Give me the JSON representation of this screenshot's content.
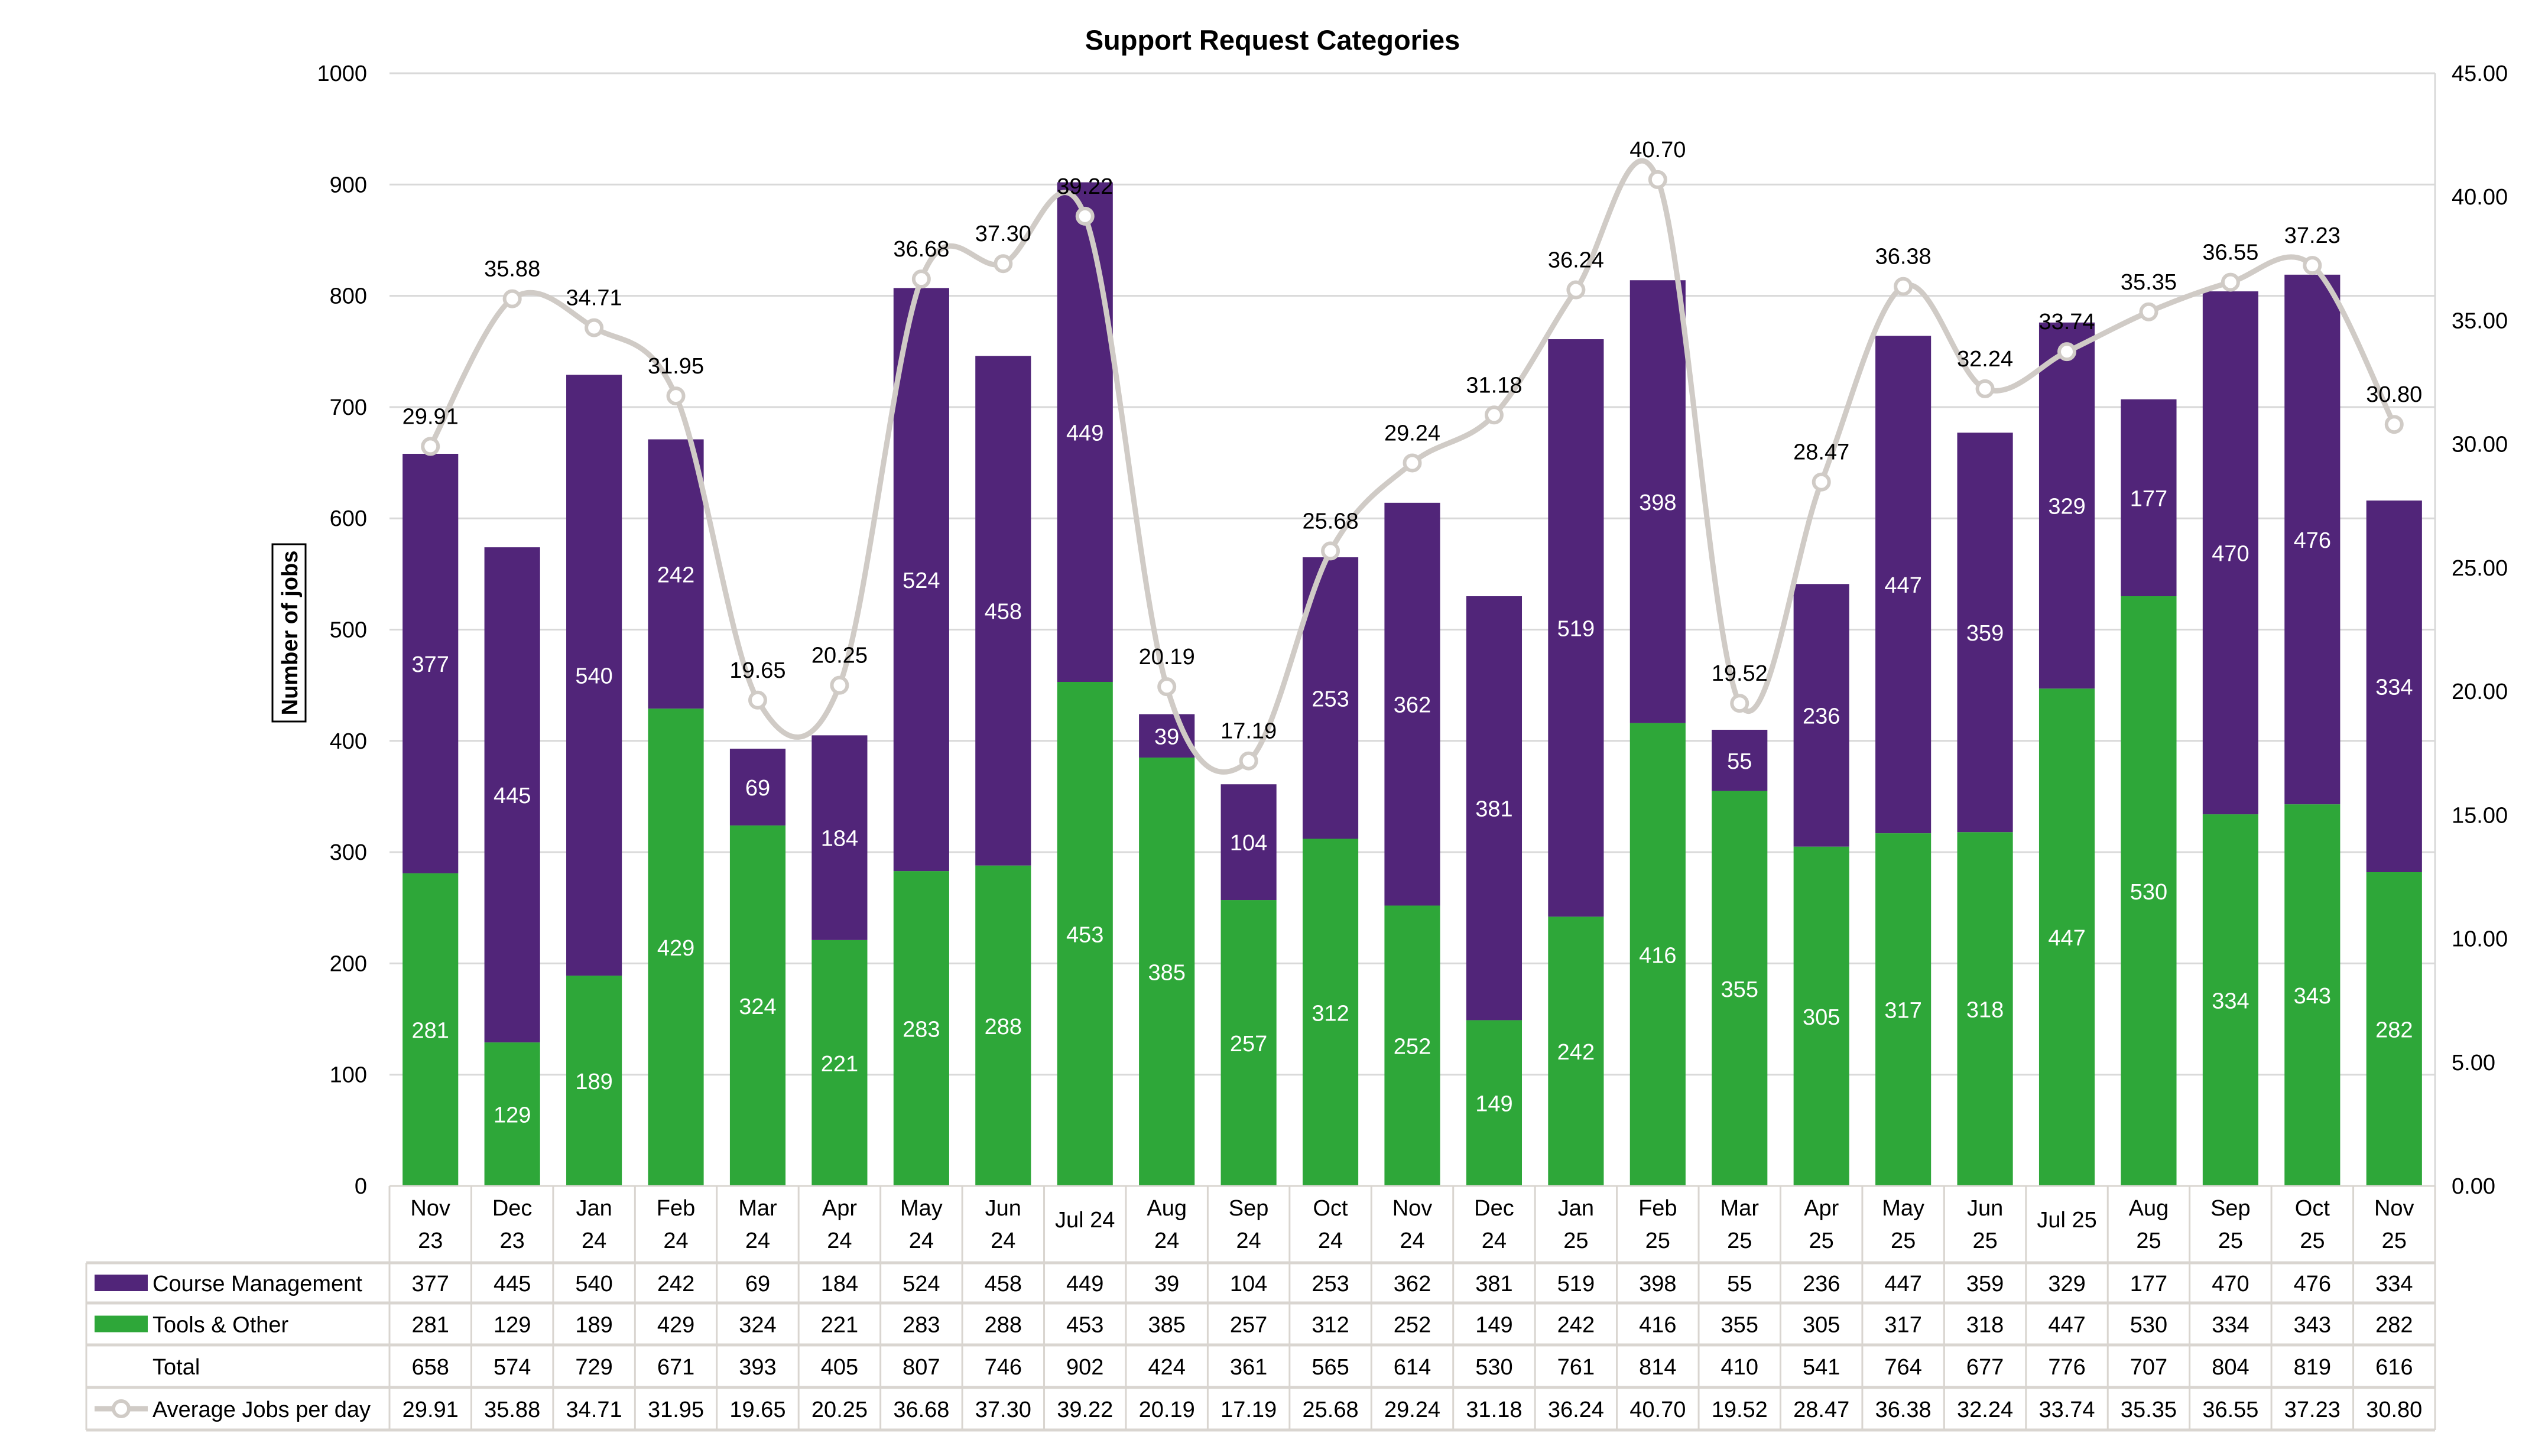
{
  "chart_data": {
    "type": "bar",
    "stacked": true,
    "title": "Support Request Categories",
    "ylabel": "Number of jobs",
    "ylim": [
      0,
      1000
    ],
    "ystep": 100,
    "y2lim": [
      0,
      45
    ],
    "y2step": 5,
    "grid": true,
    "legend": "data-table-below",
    "categories": [
      [
        "Nov",
        "23"
      ],
      [
        "Dec",
        "23"
      ],
      [
        "Jan",
        "24"
      ],
      [
        "Feb",
        "24"
      ],
      [
        "Mar",
        "24"
      ],
      [
        "Apr",
        "24"
      ],
      [
        "May",
        "24"
      ],
      [
        "Jun",
        "24"
      ],
      [
        "Jul 24"
      ],
      [
        "Aug",
        "24"
      ],
      [
        "Sep",
        "24"
      ],
      [
        "Oct",
        "24"
      ],
      [
        "Nov",
        "24"
      ],
      [
        "Dec",
        "24"
      ],
      [
        "Jan",
        "25"
      ],
      [
        "Feb",
        "25"
      ],
      [
        "Mar",
        "25"
      ],
      [
        "Apr",
        "25"
      ],
      [
        "May",
        "25"
      ],
      [
        "Jun",
        "25"
      ],
      [
        "Jul 25"
      ],
      [
        "Aug",
        "25"
      ],
      [
        "Sep",
        "25"
      ],
      [
        "Oct",
        "25"
      ],
      [
        "Nov",
        "25"
      ]
    ],
    "series": [
      {
        "name": "Course Management",
        "type": "bar",
        "color": "#512579",
        "values": [
          377,
          445,
          540,
          242,
          69,
          184,
          524,
          458,
          449,
          39,
          104,
          253,
          362,
          381,
          519,
          398,
          55,
          236,
          447,
          359,
          329,
          177,
          470,
          476,
          334
        ]
      },
      {
        "name": "Tools & Other",
        "type": "bar",
        "color": "#2ea739",
        "values": [
          281,
          129,
          189,
          429,
          324,
          221,
          283,
          288,
          453,
          385,
          257,
          312,
          252,
          149,
          242,
          416,
          355,
          305,
          317,
          318,
          447,
          530,
          334,
          343,
          282
        ]
      },
      {
        "name": "Total",
        "type": "table-only",
        "values": [
          658,
          574,
          729,
          671,
          393,
          405,
          807,
          746,
          902,
          424,
          361,
          565,
          614,
          530,
          761,
          814,
          410,
          541,
          764,
          677,
          776,
          707,
          804,
          819,
          616
        ]
      },
      {
        "name": "Average Jobs per day",
        "type": "line",
        "axis": "secondary",
        "color": "#d0cbc6",
        "smooth": true,
        "values": [
          "29.91",
          "35.88",
          "34.71",
          "31.95",
          "19.65",
          "20.25",
          "36.68",
          "37.30",
          "39.22",
          "20.19",
          "17.19",
          "25.68",
          "29.24",
          "31.18",
          "36.24",
          "40.70",
          "19.52",
          "28.47",
          "36.38",
          "32.24",
          "33.74",
          "35.35",
          "36.55",
          "37.23",
          "30.80"
        ]
      }
    ]
  }
}
